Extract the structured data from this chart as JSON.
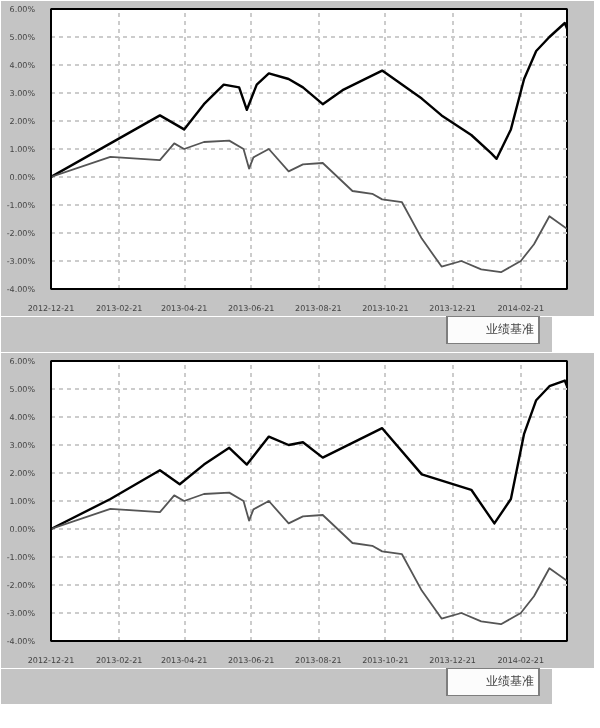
{
  "chart_data": [
    {
      "type": "line",
      "xlim": [
        "2012-12-21",
        "2014-04-04"
      ],
      "ylim": [
        -4,
        6
      ],
      "xticks": [
        "2012-12-21",
        "2013-02-21",
        "2013-04-21",
        "2013-06-21",
        "2013-08-21",
        "2013-10-21",
        "2013-12-21",
        "2014-02-21"
      ],
      "yticks": [
        {
          "value": -4,
          "label": "-4.00%"
        },
        {
          "value": -3,
          "label": "-3.00%"
        },
        {
          "value": -2,
          "label": "-2.00%"
        },
        {
          "value": -1,
          "label": "-1.00%"
        },
        {
          "value": 0,
          "label": "0.00%"
        },
        {
          "value": 1,
          "label": "1.00%"
        },
        {
          "value": 2,
          "label": "2.00%"
        },
        {
          "value": 3,
          "label": "3.00%"
        },
        {
          "value": 4,
          "label": "4.00%"
        },
        {
          "value": 5,
          "label": "5.00%"
        },
        {
          "value": 6,
          "label": "6.00%"
        }
      ],
      "grid": true,
      "legend": "bottom",
      "series": [
        {
          "color": "#000000",
          "x": [
            "2012-12-21",
            "2013-02-13",
            "2013-03-30",
            "2013-04-21",
            "2013-05-09",
            "2013-05-27",
            "2013-06-10",
            "2013-06-17",
            "2013-06-26",
            "2013-07-07",
            "2013-07-25",
            "2013-08-07",
            "2013-08-25",
            "2013-09-12",
            "2013-10-18",
            "2013-11-23",
            "2013-12-11",
            "2014-01-07",
            "2014-01-25",
            "2014-01-30",
            "2014-02-12",
            "2014-02-24",
            "2014-03-07",
            "2014-03-19",
            "2014-04-02",
            "2014-04-04"
          ],
          "values": [
            0,
            1.2,
            2.2,
            1.7,
            2.6,
            3.3,
            3.2,
            2.4,
            3.3,
            3.7,
            3.5,
            3.2,
            2.6,
            3.1,
            3.8,
            2.8,
            2.2,
            1.5,
            0.85,
            0.65,
            1.7,
            3.5,
            4.5,
            5.0,
            5.5,
            5.3
          ]
        },
        {
          "name": "业绩基准",
          "color": "#555555",
          "x": [
            "2012-12-21",
            "2013-02-13",
            "2013-03-30",
            "2013-04-12",
            "2013-04-21",
            "2013-05-09",
            "2013-06-01",
            "2013-06-14",
            "2013-06-19",
            "2013-06-23",
            "2013-07-07",
            "2013-07-25",
            "2013-08-07",
            "2013-08-25",
            "2013-09-21",
            "2013-10-09",
            "2013-10-18",
            "2013-11-05",
            "2013-11-23",
            "2013-12-11",
            "2013-12-29",
            "2014-01-16",
            "2014-02-03",
            "2014-02-21",
            "2014-03-05",
            "2014-03-19",
            "2014-04-04"
          ],
          "values": [
            0,
            0.72,
            0.6,
            1.2,
            1.0,
            1.25,
            1.3,
            1.0,
            0.3,
            0.7,
            1.0,
            0.2,
            0.45,
            0.5,
            -0.5,
            -0.6,
            -0.8,
            -0.9,
            -2.2,
            -3.2,
            -3.0,
            -3.3,
            -3.4,
            -3.0,
            -2.4,
            -1.4,
            -1.85
          ]
        }
      ]
    },
    {
      "type": "line",
      "xlim": [
        "2012-12-21",
        "2014-04-04"
      ],
      "ylim": [
        -4,
        6
      ],
      "xticks": [
        "2012-12-21",
        "2013-02-21",
        "2013-04-21",
        "2013-06-21",
        "2013-08-21",
        "2013-10-21",
        "2013-12-21",
        "2014-02-21"
      ],
      "yticks": [
        {
          "value": -4,
          "label": "-4.00%"
        },
        {
          "value": -3,
          "label": "-3.00%"
        },
        {
          "value": -2,
          "label": "-2.00%"
        },
        {
          "value": -1,
          "label": "-1.00%"
        },
        {
          "value": 0,
          "label": "0.00%"
        },
        {
          "value": 1,
          "label": "1.00%"
        },
        {
          "value": 2,
          "label": "2.00%"
        },
        {
          "value": 3,
          "label": "3.00%"
        },
        {
          "value": 4,
          "label": "4.00%"
        },
        {
          "value": 5,
          "label": "5.00%"
        },
        {
          "value": 6,
          "label": "6.00%"
        }
      ],
      "grid": true,
      "legend": "bottom",
      "series": [
        {
          "color": "#000000",
          "x": [
            "2012-12-21",
            "2013-02-13",
            "2013-03-30",
            "2013-04-17",
            "2013-05-09",
            "2013-06-01",
            "2013-06-17",
            "2013-07-07",
            "2013-07-25",
            "2013-08-07",
            "2013-08-25",
            "2013-10-18",
            "2013-11-23",
            "2014-01-07",
            "2014-01-28",
            "2014-02-12",
            "2014-02-24",
            "2014-03-07",
            "2014-03-19",
            "2014-04-02",
            "2014-04-04"
          ],
          "values": [
            0,
            1.07,
            2.1,
            1.6,
            2.3,
            2.9,
            2.3,
            3.3,
            3.0,
            3.1,
            2.55,
            3.6,
            1.95,
            1.4,
            0.2,
            1.07,
            3.4,
            4.6,
            5.1,
            5.3,
            5.1
          ]
        },
        {
          "name": "业绩基准",
          "color": "#555555",
          "x": [
            "2012-12-21",
            "2013-02-13",
            "2013-03-30",
            "2013-04-12",
            "2013-04-21",
            "2013-05-09",
            "2013-06-01",
            "2013-06-14",
            "2013-06-19",
            "2013-06-23",
            "2013-07-07",
            "2013-07-25",
            "2013-08-07",
            "2013-08-25",
            "2013-09-21",
            "2013-10-09",
            "2013-10-18",
            "2013-11-05",
            "2013-11-23",
            "2013-12-11",
            "2013-12-29",
            "2014-01-16",
            "2014-02-03",
            "2014-02-21",
            "2014-03-05",
            "2014-03-19",
            "2014-04-04"
          ],
          "values": [
            0,
            0.72,
            0.6,
            1.2,
            1.0,
            1.25,
            1.3,
            1.0,
            0.3,
            0.7,
            1.0,
            0.2,
            0.45,
            0.5,
            -0.5,
            -0.6,
            -0.8,
            -0.9,
            -2.2,
            -3.2,
            -3.0,
            -3.3,
            -3.4,
            -3.0,
            -2.4,
            -1.4,
            -1.85
          ]
        }
      ]
    }
  ]
}
